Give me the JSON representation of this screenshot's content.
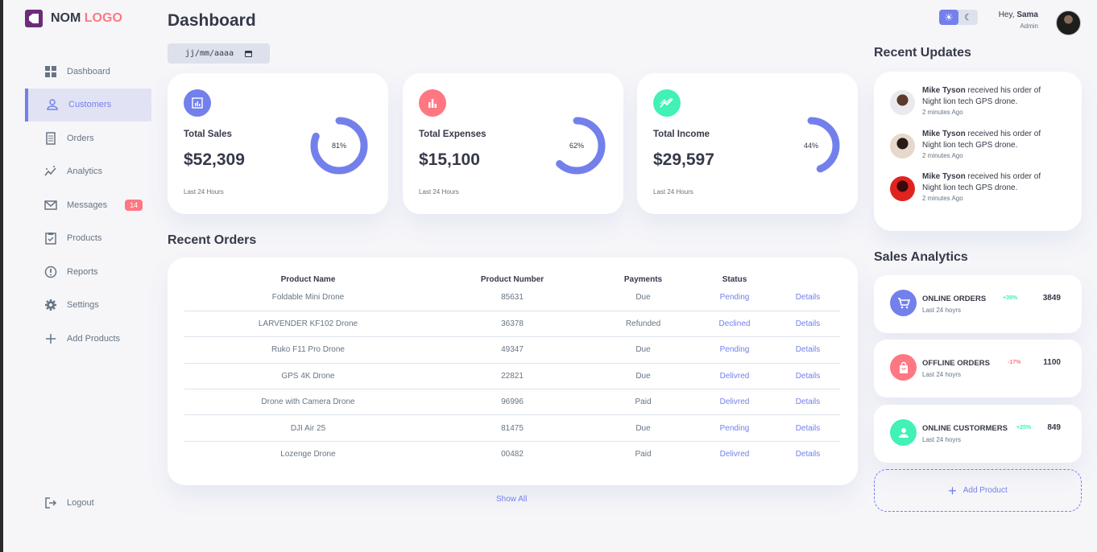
{
  "logo": {
    "text": "NOM",
    "accent": "LOGO"
  },
  "sidebar": {
    "items": [
      {
        "label": "Dashboard",
        "icon": "grid-icon"
      },
      {
        "label": "Customers",
        "icon": "person-icon",
        "active": true
      },
      {
        "label": "Orders",
        "icon": "receipt-icon"
      },
      {
        "label": "Analytics",
        "icon": "insights-icon"
      },
      {
        "label": "Messages",
        "icon": "mail-icon",
        "badge": "14"
      },
      {
        "label": "Products",
        "icon": "inventory-icon"
      },
      {
        "label": "Reports",
        "icon": "report-icon"
      },
      {
        "label": "Settings",
        "icon": "gear-icon"
      },
      {
        "label": "Add Products",
        "icon": "plus-icon"
      }
    ],
    "logout": "Logout"
  },
  "header": {
    "title": "Dashboard",
    "date_placeholder": "jj/mm/aaaa"
  },
  "cards": [
    {
      "label": "Total Sales",
      "value": "$52,309",
      "percent": 81,
      "percent_label": "81%",
      "sub": "Last 24 Hours",
      "color": "#7380ec"
    },
    {
      "label": "Total Expenses",
      "value": "$15,100",
      "percent": 62,
      "percent_label": "62%",
      "sub": "Last 24 Hours",
      "color": "#ff7782"
    },
    {
      "label": "Total Income",
      "value": "$29,597",
      "percent": 44,
      "percent_label": "44%",
      "sub": "Last 24 Hours",
      "color": "#41f1b6"
    }
  ],
  "orders": {
    "title": "Recent Orders",
    "columns": [
      "Product Name",
      "Product Number",
      "Payments",
      "Status",
      ""
    ],
    "rows": [
      {
        "name": "Foldable Mini Drone",
        "number": "85631",
        "payment": "Due",
        "status": "Pending",
        "action": "Details"
      },
      {
        "name": "LARVENDER KF102 Drone",
        "number": "36378",
        "payment": "Refunded",
        "status": "Declined",
        "action": "Details"
      },
      {
        "name": "Ruko F11 Pro Drone",
        "number": "49347",
        "payment": "Due",
        "status": "Pending",
        "action": "Details"
      },
      {
        "name": "GPS 4K Drone",
        "number": "22821",
        "payment": "Due",
        "status": "Delivred",
        "action": "Details"
      },
      {
        "name": "Drone with Camera Drone",
        "number": "96996",
        "payment": "Paid",
        "status": "Delivred",
        "action": "Details"
      },
      {
        "name": "DJI Air 25",
        "number": "81475",
        "payment": "Due",
        "status": "Pending",
        "action": "Details"
      },
      {
        "name": "Lozenge Drone",
        "number": "00482",
        "payment": "Paid",
        "status": "Delivred",
        "action": "Details"
      }
    ],
    "show_all": "Show All"
  },
  "user": {
    "greeting": "Hey,",
    "name": "Sama",
    "role": "Admin"
  },
  "theme_toggle": {
    "light_icon": "sun-icon",
    "dark_icon": "moon-icon"
  },
  "updates": {
    "title": "Recent Updates",
    "items": [
      {
        "name": "Mike Tyson",
        "text": "received his order of Night lion tech GPS drone.",
        "time": "2 minutes Ago"
      },
      {
        "name": "Mike Tyson",
        "text": "received his order of Night lion tech GPS drone.",
        "time": "2 minutes Ago"
      },
      {
        "name": "Mike Tyson",
        "text": "received his order of Night lion tech GPS drone.",
        "time": "2 minutes Ago"
      }
    ]
  },
  "analytics": {
    "title": "Sales Analytics",
    "items": [
      {
        "name": "ONLINE ORDERS",
        "sub": "Last 24 hoyrs",
        "change": "+39%",
        "value": "3849",
        "color": "#7380ec",
        "change_color": "#41f1b6"
      },
      {
        "name": "OFFLINE ORDERS",
        "sub": "Last 24 hoyrs",
        "change": "-17%",
        "value": "1100",
        "color": "#ff7782",
        "change_color": "#ff7782"
      },
      {
        "name": "ONLINE CUSTORMERS",
        "sub": "Last 24 hoyrs",
        "change": "+25%",
        "value": "849",
        "color": "#41f1b6",
        "change_color": "#41f1b6"
      }
    ],
    "add_product": "Add Product"
  }
}
